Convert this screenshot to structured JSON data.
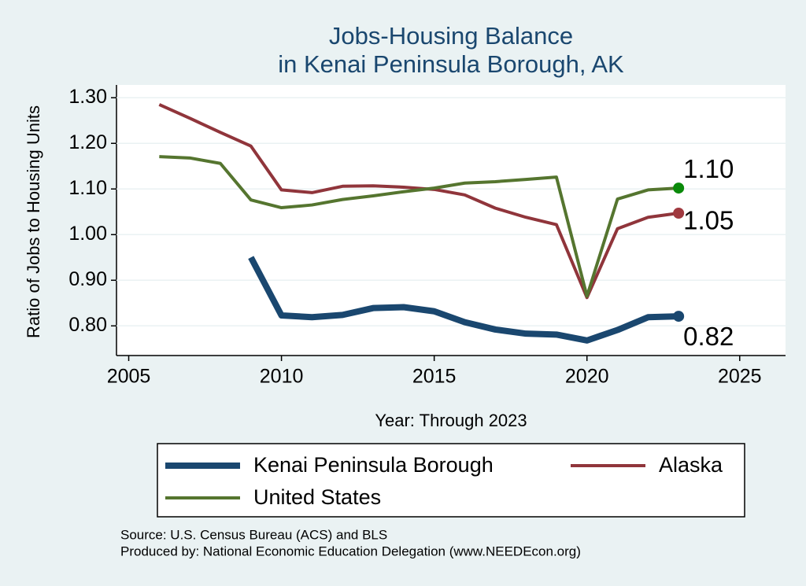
{
  "chart_data": {
    "type": "line",
    "title": [
      "Jobs-Housing Balance",
      "in Kenai Peninsula Borough, AK"
    ],
    "xlabel": "Year: Through 2023",
    "ylabel": "Ratio of Jobs to Housing Units",
    "x": [
      2006,
      2007,
      2008,
      2009,
      2010,
      2011,
      2012,
      2013,
      2014,
      2015,
      2016,
      2017,
      2018,
      2019,
      2020,
      2021,
      2022,
      2023
    ],
    "series": [
      {
        "name": "Kenai Peninsula Borough",
        "color": "#1a476f",
        "dot_color": "#1a476f",
        "width": 8,
        "end_label": "0.82",
        "values": [
          null,
          null,
          null,
          0.95,
          0.823,
          0.819,
          0.824,
          0.839,
          0.841,
          0.832,
          0.808,
          0.792,
          0.783,
          0.781,
          0.768,
          0.791,
          0.819,
          0.821
        ]
      },
      {
        "name": "Alaska",
        "color": "#90353b",
        "dot_color": "#a0393f",
        "width": 4,
        "end_label": "1.05",
        "values": [
          1.285,
          1.255,
          1.224,
          1.194,
          1.098,
          1.092,
          1.106,
          1.107,
          1.104,
          1.099,
          1.087,
          1.058,
          1.038,
          1.022,
          0.862,
          1.013,
          1.038,
          1.047
        ]
      },
      {
        "name": "United States",
        "color": "#55752f",
        "dot_color": "#0a8a0a",
        "width": 4,
        "end_label": "1.10",
        "values": [
          1.171,
          1.168,
          1.156,
          1.076,
          1.059,
          1.065,
          1.077,
          1.085,
          1.094,
          1.102,
          1.113,
          1.116,
          1.121,
          1.126,
          0.865,
          1.078,
          1.098,
          1.102
        ]
      }
    ],
    "xlim": [
      2004.6,
      2026.5
    ],
    "xticks": [
      2005,
      2010,
      2015,
      2020,
      2025
    ],
    "ylim": [
      0.735,
      1.328
    ],
    "yticks": [
      {
        "value": 0.8,
        "label": "0.80"
      },
      {
        "value": 0.9,
        "label": "0.90"
      },
      {
        "value": 1.0,
        "label": "1.00"
      },
      {
        "value": 1.1,
        "label": "1.10"
      },
      {
        "value": 1.2,
        "label": "1.20"
      },
      {
        "value": 1.3,
        "label": "1.30"
      }
    ],
    "grid": true,
    "legend_position": "bottom",
    "notes": [
      "Source: U.S. Census Bureau (ACS) and BLS",
      "Produced by: National Economic Education Delegation (www.NEEDEcon.org)"
    ]
  }
}
